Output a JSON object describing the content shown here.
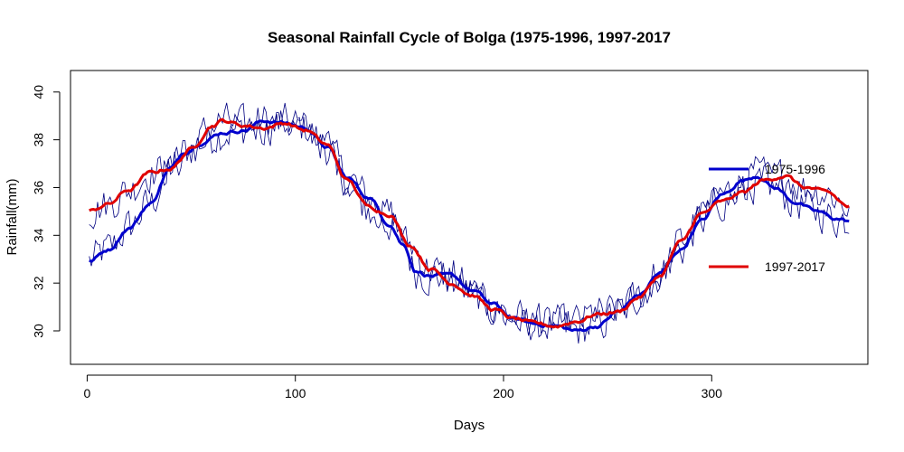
{
  "chart_data": {
    "type": "line",
    "title": "Seasonal Rainfall Cycle of Bolga (1975-1996, 1997-2017",
    "xlabel": "Days",
    "ylabel": "Rainfall(mm)",
    "xlim": [
      -8,
      375
    ],
    "ylim": [
      28.6,
      40.9
    ],
    "x_ticks": [
      0,
      100,
      200,
      300
    ],
    "y_ticks": [
      30,
      32,
      34,
      36,
      38,
      40
    ],
    "legend_position": "right",
    "grid": false,
    "series": [
      {
        "name": "1975-1996",
        "color": "#0000CD",
        "style": "smoothed",
        "points": [
          [
            1,
            32.9
          ],
          [
            10,
            33.4
          ],
          [
            20,
            34.3
          ],
          [
            30,
            35.3
          ],
          [
            40,
            36.8
          ],
          [
            47,
            37.5
          ],
          [
            55,
            37.9
          ],
          [
            65,
            38.3
          ],
          [
            75,
            38.4
          ],
          [
            85,
            38.8
          ],
          [
            95,
            38.7
          ],
          [
            105,
            38.5
          ],
          [
            115,
            37.7
          ],
          [
            125,
            36.4
          ],
          [
            135,
            35.6
          ],
          [
            145,
            34.5
          ],
          [
            152,
            33.6
          ],
          [
            158,
            32.5
          ],
          [
            165,
            32.3
          ],
          [
            175,
            32.3
          ],
          [
            185,
            31.7
          ],
          [
            195,
            31.1
          ],
          [
            205,
            30.5
          ],
          [
            215,
            30.3
          ],
          [
            225,
            30.2
          ],
          [
            235,
            30.0
          ],
          [
            245,
            30.2
          ],
          [
            255,
            30.8
          ],
          [
            265,
            31.5
          ],
          [
            275,
            32.4
          ],
          [
            285,
            33.4
          ],
          [
            295,
            34.6
          ],
          [
            305,
            35.7
          ],
          [
            315,
            36.3
          ],
          [
            322,
            36.5
          ],
          [
            330,
            36.0
          ],
          [
            340,
            35.4
          ],
          [
            350,
            35.0
          ],
          [
            360,
            34.7
          ],
          [
            366,
            34.6
          ]
        ]
      },
      {
        "name": "1997-2017",
        "color": "#E00000",
        "style": "smoothed",
        "points": [
          [
            1,
            35.0
          ],
          [
            10,
            35.3
          ],
          [
            20,
            35.9
          ],
          [
            30,
            36.6
          ],
          [
            40,
            36.8
          ],
          [
            50,
            37.6
          ],
          [
            60,
            38.6
          ],
          [
            65,
            38.8
          ],
          [
            75,
            38.6
          ],
          [
            85,
            38.5
          ],
          [
            95,
            38.7
          ],
          [
            105,
            38.4
          ],
          [
            115,
            37.8
          ],
          [
            125,
            36.3
          ],
          [
            135,
            35.2
          ],
          [
            145,
            34.9
          ],
          [
            155,
            33.6
          ],
          [
            165,
            32.6
          ],
          [
            175,
            32.0
          ],
          [
            185,
            31.5
          ],
          [
            195,
            30.9
          ],
          [
            205,
            30.5
          ],
          [
            215,
            30.3
          ],
          [
            225,
            30.2
          ],
          [
            235,
            30.4
          ],
          [
            245,
            30.7
          ],
          [
            255,
            30.8
          ],
          [
            265,
            31.4
          ],
          [
            275,
            32.3
          ],
          [
            285,
            33.7
          ],
          [
            295,
            34.9
          ],
          [
            305,
            35.4
          ],
          [
            315,
            35.8
          ],
          [
            325,
            36.3
          ],
          [
            335,
            36.5
          ],
          [
            345,
            36.0
          ],
          [
            355,
            35.8
          ],
          [
            366,
            35.2
          ]
        ]
      },
      {
        "name": "1975-1996 daily",
        "color": "#000080",
        "style": "daily-raw",
        "amplitude": 0.8,
        "follows": "1975-1996"
      },
      {
        "name": "1997-2017 daily",
        "color": "#000080",
        "style": "daily-raw",
        "amplitude": 0.75,
        "follows": "1997-2017"
      }
    ],
    "legend": [
      {
        "label": "1975-1996",
        "color": "#0000CD"
      },
      {
        "label": "1997-2017",
        "color": "#E00000"
      }
    ]
  }
}
